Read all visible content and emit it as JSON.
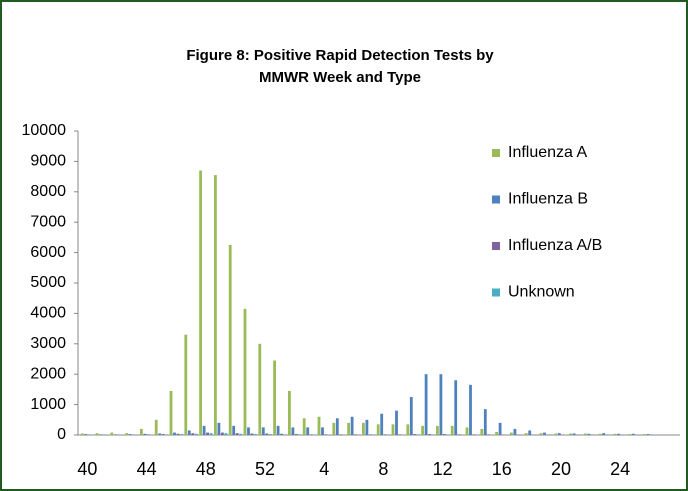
{
  "chart_data": {
    "type": "bar",
    "title": "Figure 8: Positive Rapid Detection Tests by",
    "subtitle": "MMWR Week and Type",
    "categories": [
      "40",
      null,
      null,
      null,
      "44",
      null,
      null,
      null,
      "48",
      null,
      null,
      null,
      "52",
      null,
      null,
      null,
      "4",
      null,
      null,
      null,
      "8",
      null,
      null,
      null,
      "12",
      null,
      null,
      null,
      "16",
      null,
      null,
      null,
      "20",
      null,
      null,
      null,
      "24",
      null,
      null
    ],
    "series": [
      {
        "name": "Influenza A",
        "color": "#9bbb59",
        "values": [
          50,
          60,
          80,
          60,
          200,
          500,
          1450,
          3300,
          8700,
          8550,
          6250,
          4150,
          3000,
          2450,
          1450,
          550,
          600,
          400,
          400,
          400,
          350,
          350,
          350,
          300,
          300,
          300,
          250,
          200,
          100,
          80,
          60,
          60,
          50,
          50,
          50,
          40,
          40,
          30,
          30
        ]
      },
      {
        "name": "Influenza B",
        "color": "#4f81bd",
        "values": [
          30,
          20,
          20,
          30,
          40,
          50,
          80,
          150,
          300,
          400,
          300,
          250,
          250,
          300,
          250,
          250,
          250,
          550,
          600,
          500,
          700,
          800,
          1250,
          2000,
          2000,
          1800,
          1650,
          850,
          400,
          200,
          150,
          80,
          60,
          50,
          40,
          60,
          40,
          40,
          30
        ]
      },
      {
        "name": "Influenza A/B",
        "color": "#8064a2",
        "values": [
          10,
          10,
          10,
          10,
          20,
          30,
          40,
          60,
          80,
          80,
          60,
          50,
          50,
          40,
          30,
          20,
          20,
          20,
          20,
          20,
          20,
          20,
          30,
          30,
          30,
          20,
          20,
          20,
          10,
          10,
          10,
          10,
          10,
          10,
          10,
          10,
          10,
          10,
          10
        ]
      },
      {
        "name": "Unknown",
        "color": "#4bacc6",
        "values": [
          5,
          5,
          5,
          5,
          10,
          20,
          30,
          40,
          60,
          60,
          40,
          30,
          30,
          20,
          20,
          10,
          10,
          10,
          10,
          10,
          10,
          10,
          20,
          20,
          20,
          10,
          10,
          10,
          5,
          5,
          5,
          5,
          5,
          5,
          5,
          5,
          5,
          5,
          5
        ]
      }
    ],
    "ylim": [
      0,
      10000
    ],
    "yticks": [
      0,
      1000,
      2000,
      3000,
      4000,
      5000,
      6000,
      7000,
      8000,
      9000,
      10000
    ],
    "grid": false
  }
}
